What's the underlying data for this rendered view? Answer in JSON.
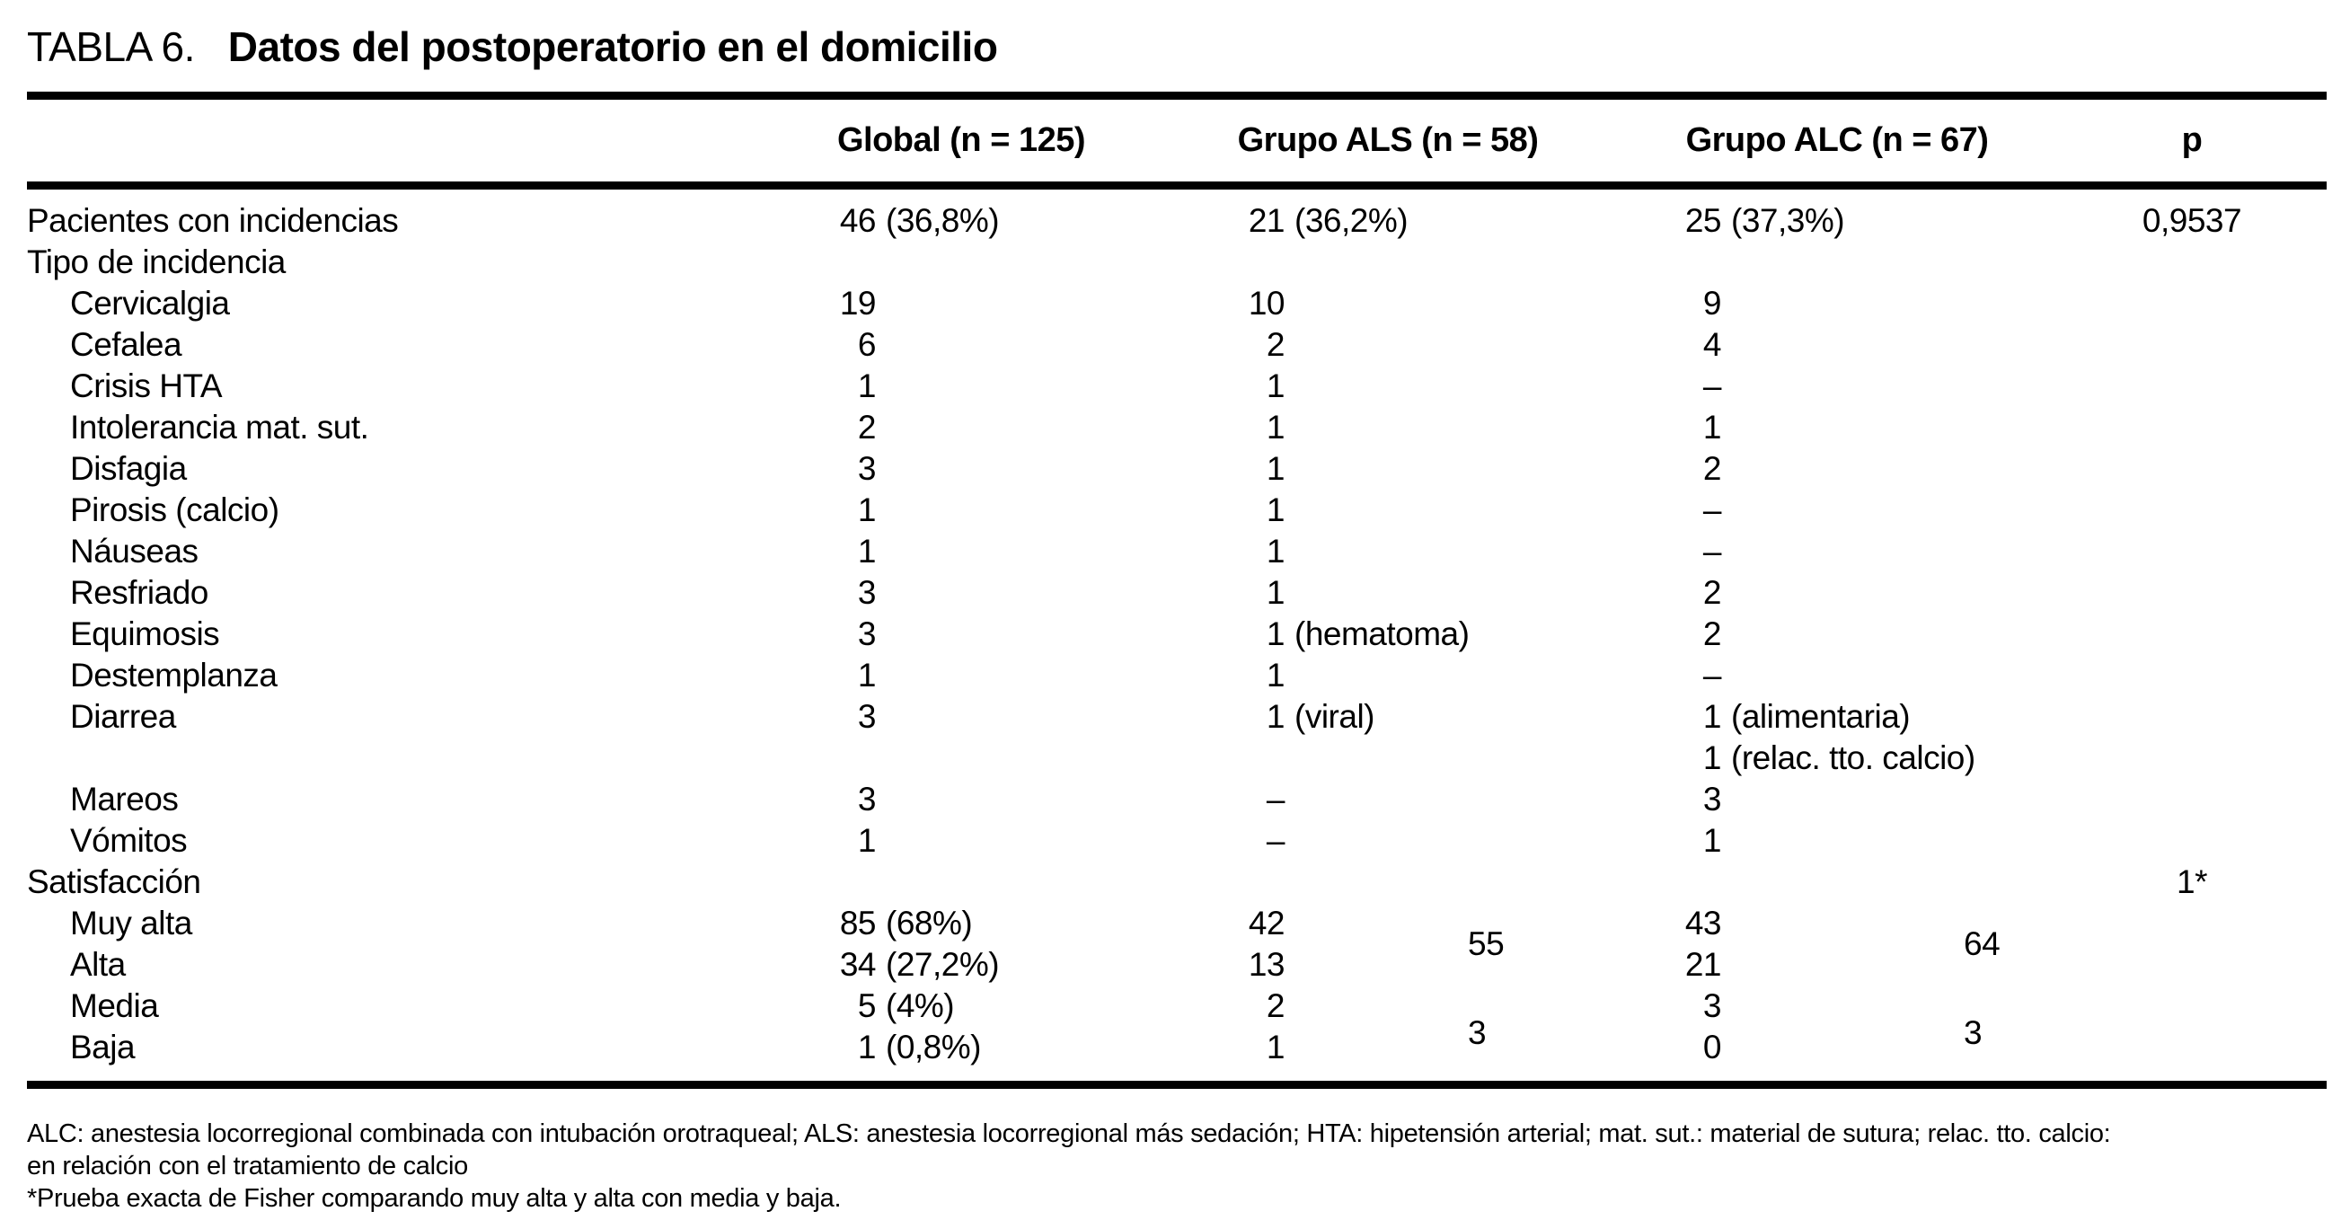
{
  "title": {
    "prefix": "TABLA 6.",
    "text": "Datos del postoperatorio en el domicilio"
  },
  "table": {
    "columns": [
      "",
      "Global (n = 125)",
      "Grupo ALS (n = 58)",
      "Grupo ALC (n = 67)",
      "p"
    ],
    "rows": [
      {
        "label": "Pacientes con incidencias",
        "indent": 0,
        "global": "46 (36,8%)",
        "als": "21 (36,2%)",
        "alc": "25 (37,3%)",
        "p": "0,9537"
      },
      {
        "label": "Tipo de incidencia",
        "indent": 0
      },
      {
        "label": "Cervicalgia",
        "indent": 1,
        "global": "19",
        "als": "10",
        "alc": "9"
      },
      {
        "label": "Cefalea",
        "indent": 1,
        "global": "6",
        "als": "2",
        "alc": "4"
      },
      {
        "label": "Crisis HTA",
        "indent": 1,
        "global": "1",
        "als": "1",
        "alc": "–"
      },
      {
        "label": "Intolerancia mat. sut.",
        "indent": 1,
        "global": "2",
        "als": "1",
        "alc": "1"
      },
      {
        "label": "Disfagia",
        "indent": 1,
        "global": "3",
        "als": "1",
        "alc": "2"
      },
      {
        "label": "Pirosis (calcio)",
        "indent": 1,
        "global": "1",
        "als": "1",
        "alc": "–"
      },
      {
        "label": "Náuseas",
        "indent": 1,
        "global": "1",
        "als": "1",
        "alc": "–"
      },
      {
        "label": "Resfriado",
        "indent": 1,
        "global": "3",
        "als": "1",
        "alc": "2"
      },
      {
        "label": "Equimosis",
        "indent": 1,
        "global": "3",
        "als": "1 (hematoma)",
        "alc": "2"
      },
      {
        "label": "Destemplanza",
        "indent": 1,
        "global": "1",
        "als": "1",
        "alc": "–"
      },
      {
        "label": "Diarrea",
        "indent": 1,
        "global": "3",
        "als": "1 (viral)",
        "alc": [
          "1 (alimentaria)",
          "1 (relac. tto. calcio)"
        ]
      },
      {
        "label": "Mareos",
        "indent": 1,
        "global": "3",
        "als": "–",
        "alc": "3"
      },
      {
        "label": "Vómitos",
        "indent": 1,
        "global": "1",
        "als": "–",
        "alc": "1"
      },
      {
        "label": "Satisfacción",
        "indent": 0,
        "p": "1*"
      },
      {
        "label": "Muy alta",
        "indent": 1,
        "global": "85 (68%)",
        "als": "42",
        "alc": "43",
        "als_group": "55",
        "alc_group": "64"
      },
      {
        "label": "Alta",
        "indent": 1,
        "global": "34 (27,2%)",
        "als": "13",
        "alc": "21"
      },
      {
        "label": "Media",
        "indent": 1,
        "global": "5 (4%)",
        "als": "2",
        "alc": "3",
        "als_group": "3",
        "alc_group": "3"
      },
      {
        "label": "Baja",
        "indent": 1,
        "global": "1 (0,8%)",
        "als": "1",
        "alc": "0"
      }
    ]
  },
  "footnotes": [
    "ALC: anestesia locorregional combinada con intubación orotraqueal; ALS: anestesia locorregional más sedación; HTA: hipetensión arterial; mat. sut.: material de sutura; relac. tto. calcio:",
    "en relación con el tratamiento de calcio",
    "*Prueba exacta de Fisher comparando muy alta y alta con media y baja."
  ]
}
